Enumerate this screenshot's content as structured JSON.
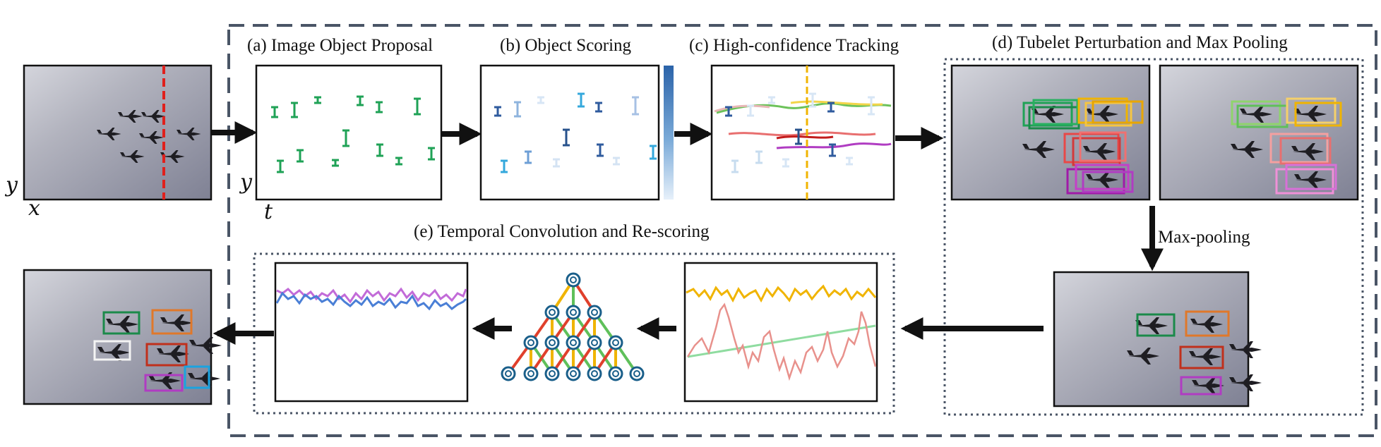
{
  "panels": {
    "a": "(a) Image Object Proposal",
    "b": "(b) Object Scoring",
    "c": "(c) High-confidence Tracking",
    "d": "(d) Tubelet Perturbation and Max Pooling",
    "e": "(e) Temporal Convolution and Re-scoring"
  },
  "edge_labels": {
    "maxpool": "Max-pooling"
  },
  "axes": {
    "y1": "y",
    "x1": "x",
    "y2": "y",
    "t": "t"
  },
  "colors": {
    "frame_border": "#4a5566",
    "proposal_green": "#1fa256",
    "track_red": "#d33a3a",
    "track_yellow": "#f0b400",
    "track_purple": "#b03cc2",
    "track_green": "#5fc05a",
    "scoring_blue": "#2a64b8",
    "tree_node": "#1a5f8a"
  }
}
